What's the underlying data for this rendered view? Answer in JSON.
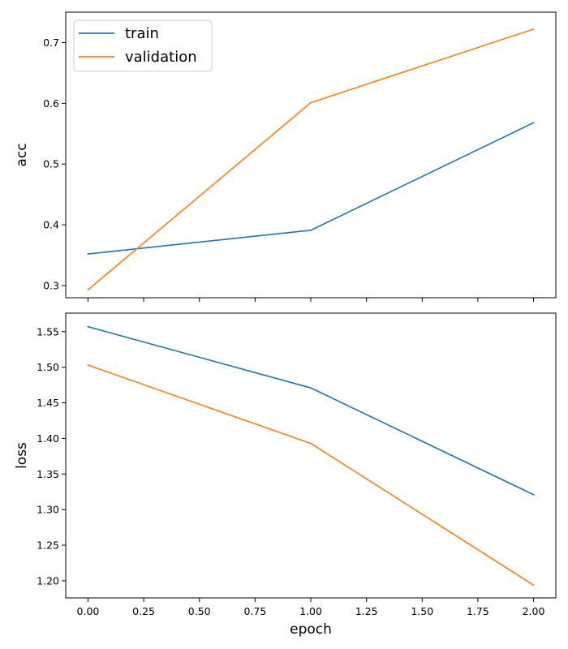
{
  "chart_data": [
    {
      "type": "line",
      "ylabel": "acc",
      "xlabel": "",
      "x": [
        0,
        1,
        2
      ],
      "xlim": [
        -0.1,
        2.1
      ],
      "ylim": [
        0.28,
        0.75
      ],
      "xticks": [
        0.0,
        0.25,
        0.5,
        0.75,
        1.0,
        1.25,
        1.5,
        1.75,
        2.0
      ],
      "xtick_labels_visible": false,
      "yticks": [
        0.3,
        0.4,
        0.5,
        0.6,
        0.7
      ],
      "ytick_labels": [
        "0.3",
        "0.4",
        "0.5",
        "0.6",
        "0.7"
      ],
      "legend_position": "top-left",
      "series": [
        {
          "name": "train",
          "color": "#1f77b4",
          "values": [
            0.352,
            0.391,
            0.568
          ]
        },
        {
          "name": "validation",
          "color": "#ff7f0e",
          "values": [
            0.293,
            0.601,
            0.722
          ]
        }
      ]
    },
    {
      "type": "line",
      "ylabel": "loss",
      "xlabel": "epoch",
      "x": [
        0,
        1,
        2
      ],
      "xlim": [
        -0.1,
        2.1
      ],
      "ylim": [
        1.176,
        1.576
      ],
      "xticks": [
        0.0,
        0.25,
        0.5,
        0.75,
        1.0,
        1.25,
        1.5,
        1.75,
        2.0
      ],
      "xtick_labels": [
        "0.00",
        "0.25",
        "0.50",
        "0.75",
        "1.00",
        "1.25",
        "1.50",
        "1.75",
        "2.00"
      ],
      "xtick_labels_visible": true,
      "yticks": [
        1.2,
        1.25,
        1.3,
        1.35,
        1.4,
        1.45,
        1.5,
        1.55
      ],
      "ytick_labels": [
        "1.20",
        "1.25",
        "1.30",
        "1.35",
        "1.40",
        "1.45",
        "1.50",
        "1.55"
      ],
      "series": [
        {
          "name": "",
          "color": "#1f77b4",
          "values": [
            1.557,
            1.471,
            1.321
          ]
        },
        {
          "name": "",
          "color": "#ff7f0e",
          "values": [
            1.503,
            1.393,
            1.194
          ]
        }
      ]
    }
  ]
}
